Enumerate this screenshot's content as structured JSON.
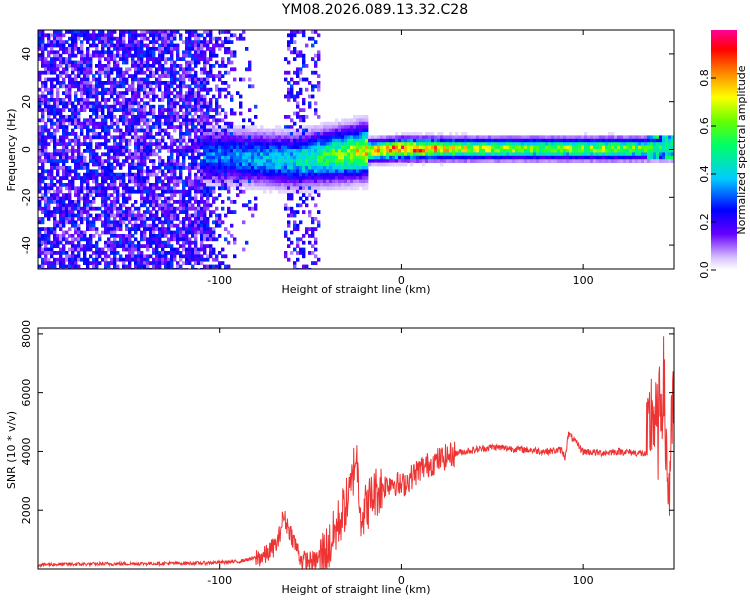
{
  "title": "YM08.2026.089.13.32.C28",
  "chart_data": [
    {
      "type": "heatmap",
      "xlabel": "Height of straight line (km)",
      "ylabel": "Frequency (Hz)",
      "xlim": [
        -200,
        150
      ],
      "ylim": [
        -50,
        50
      ],
      "xticks": [
        -100,
        0,
        100
      ],
      "xtick_labels": [
        "-100",
        "0",
        "100"
      ],
      "yticks": [
        -40,
        -20,
        0,
        20,
        40
      ],
      "ytick_labels": [
        "-40",
        "-20",
        "0",
        "20",
        "40"
      ],
      "colorbar": {
        "label": "Normalized spectral amplitude",
        "range": [
          0.0,
          1.0
        ],
        "ticks": [
          0.0,
          0.2,
          0.4,
          0.6,
          0.8
        ],
        "tick_labels": [
          "0.0",
          "0.2",
          "0.4",
          "0.6",
          "0.8"
        ],
        "colormap": "rainbow"
      },
      "ridge": {
        "description_points_x": [
          -100,
          -80,
          -60,
          -40,
          -20,
          0,
          40,
          80,
          120,
          150
        ],
        "frequency_y": [
          -2,
          -3,
          -4,
          -2,
          0,
          1,
          1,
          1,
          1,
          1
        ],
        "amplitude": [
          0.35,
          0.4,
          0.45,
          0.6,
          0.8,
          0.95,
          0.7,
          0.65,
          0.7,
          0.5
        ]
      }
    },
    {
      "type": "line",
      "xlabel": "Height of straight line (km)",
      "ylabel": "SNR (10 * v/v)",
      "xlim": [
        -200,
        150
      ],
      "ylim": [
        0,
        8200
      ],
      "xticks": [
        -100,
        0,
        100
      ],
      "xtick_labels": [
        "-100",
        "0",
        "100"
      ],
      "yticks": [
        2000,
        4000,
        6000,
        8000
      ],
      "ytick_labels": [
        "2000",
        "4000",
        "6000",
        "8000"
      ],
      "color": "#ee3333",
      "series": [
        {
          "name": "SNR",
          "x": [
            -200,
            -150,
            -110,
            -90,
            -75,
            -68,
            -65,
            -60,
            -55,
            -48,
            -40,
            -35,
            -28,
            -25,
            -22,
            -15,
            -5,
            0,
            10,
            20,
            30,
            40,
            50,
            60,
            70,
            80,
            88,
            90,
            92,
            100,
            110,
            120,
            130,
            135,
            138,
            141,
            144,
            147,
            150
          ],
          "y": [
            150,
            180,
            200,
            250,
            450,
            900,
            1800,
            1100,
            300,
            250,
            700,
            1500,
            2600,
            4000,
            1800,
            2600,
            3000,
            2800,
            3400,
            3700,
            3950,
            4050,
            4150,
            4100,
            4050,
            4000,
            4050,
            3800,
            4600,
            4000,
            3950,
            4000,
            3950,
            3900,
            5500,
            4500,
            6500,
            2500,
            5800
          ]
        }
      ]
    }
  ],
  "colors": {
    "line": "#ee3333",
    "axis": "#000000",
    "background": "#ffffff"
  }
}
